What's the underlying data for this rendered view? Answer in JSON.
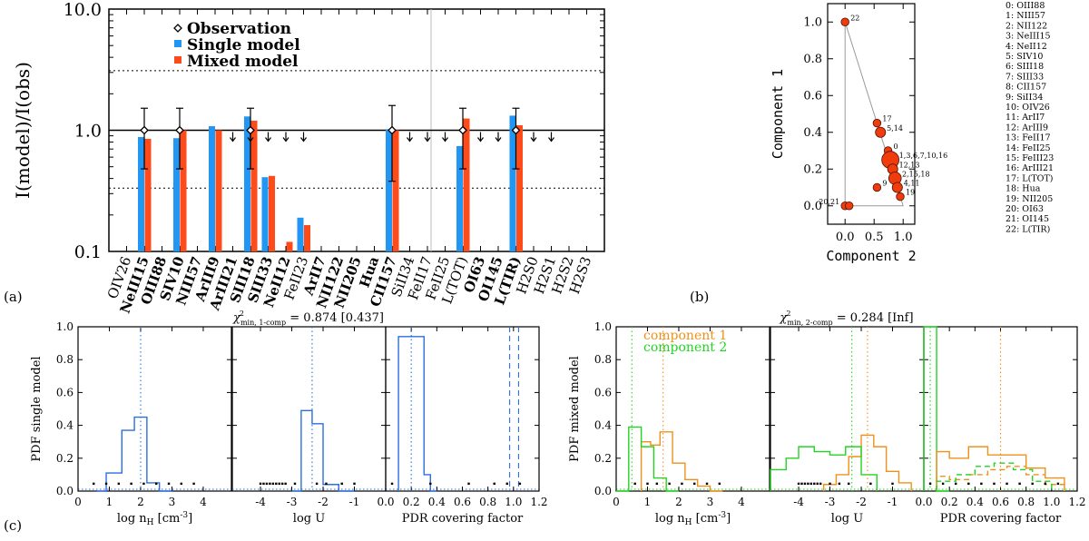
{
  "panel_labels": {
    "a": "(a)",
    "b": "(b)",
    "c": "(c)"
  },
  "chart_data": [
    {
      "id": "a",
      "type": "bar",
      "yscale": "log",
      "ylim": [
        0.1,
        10
      ],
      "ylabel": "I(model)/I(obs)",
      "yticks": [
        {
          "v": 0.1,
          "label": "0.1"
        },
        {
          "v": 1,
          "label": "1.0"
        },
        {
          "v": 10,
          "label": "10.0"
        }
      ],
      "ref_lines": {
        "solid": 1.0,
        "dotted": [
          0.333,
          3.1
        ]
      },
      "legend": [
        "Observation",
        "Single model",
        "Mixed model"
      ],
      "colors": {
        "single": "#2196f3",
        "mixed": "#ff4a1a"
      },
      "categories": [
        {
          "label": "OIV26",
          "bold": false,
          "single": null,
          "mixed": null,
          "obs": false,
          "limit": false
        },
        {
          "label": "NeIII15",
          "bold": true,
          "single": 0.88,
          "mixed": 0.85,
          "obs": true,
          "err": [
            0.48,
            1.52
          ],
          "limit": false
        },
        {
          "label": "OIII88",
          "bold": true,
          "single": null,
          "mixed": null,
          "obs": false,
          "limit": false
        },
        {
          "label": "SIV10",
          "bold": true,
          "single": 0.86,
          "mixed": 1.0,
          "obs": true,
          "err": [
            0.48,
            1.52
          ],
          "limit": false
        },
        {
          "label": "NIII57",
          "bold": true,
          "single": null,
          "mixed": null,
          "obs": false,
          "limit": false
        },
        {
          "label": "ArIII9",
          "bold": true,
          "single": 1.08,
          "mixed": 1.0,
          "obs": false,
          "limit": false
        },
        {
          "label": "ArIII21",
          "bold": true,
          "single": null,
          "mixed": null,
          "obs": false,
          "limit": true
        },
        {
          "label": "SIII18",
          "bold": true,
          "single": 1.3,
          "mixed": 1.2,
          "obs": true,
          "err": [
            0.48,
            1.52
          ],
          "limit": true
        },
        {
          "label": "SIII33",
          "bold": true,
          "single": 0.41,
          "mixed": 0.42,
          "obs": false,
          "limit": true
        },
        {
          "label": "NeII12",
          "bold": true,
          "single": null,
          "mixed": 0.12,
          "obs": false,
          "limit": true
        },
        {
          "label": "FeII23",
          "bold": false,
          "single": 0.19,
          "mixed": 0.165,
          "obs": false,
          "limit": true
        },
        {
          "label": "ArII7",
          "bold": true,
          "single": null,
          "mixed": null,
          "obs": false,
          "limit": false
        },
        {
          "label": "NII122",
          "bold": true,
          "single": null,
          "mixed": null,
          "obs": false,
          "limit": false
        },
        {
          "label": "NII205",
          "bold": true,
          "single": null,
          "mixed": null,
          "obs": false,
          "limit": false
        },
        {
          "label": "Hua",
          "bold": true,
          "single": null,
          "mixed": null,
          "obs": false,
          "limit": false
        },
        {
          "label": "CII157",
          "bold": true,
          "single": 1.02,
          "mixed": 1.0,
          "obs": true,
          "err": [
            0.38,
            1.6
          ],
          "limit": false
        },
        {
          "label": "SiII34",
          "bold": false,
          "single": null,
          "mixed": null,
          "obs": false,
          "limit": true
        },
        {
          "label": "FeII17",
          "bold": false,
          "single": null,
          "mixed": null,
          "obs": false,
          "limit": true
        },
        {
          "label": "FeII25",
          "bold": false,
          "single": null,
          "mixed": null,
          "obs": false,
          "limit": true
        },
        {
          "label": "L(TOT)",
          "bold": false,
          "single": 0.74,
          "mixed": 1.25,
          "obs": true,
          "err": [
            0.48,
            1.52
          ],
          "limit": false
        },
        {
          "label": "OI63",
          "bold": true,
          "single": null,
          "mixed": null,
          "obs": false,
          "limit": true
        },
        {
          "label": "OI145",
          "bold": true,
          "single": null,
          "mixed": null,
          "obs": false,
          "limit": true
        },
        {
          "label": "L(TIR)",
          "bold": true,
          "single": 1.32,
          "mixed": 1.1,
          "obs": true,
          "err": [
            0.48,
            1.52
          ],
          "limit": false
        },
        {
          "label": "H2S0",
          "bold": false,
          "single": null,
          "mixed": null,
          "obs": false,
          "limit": true
        },
        {
          "label": "H2S1",
          "bold": false,
          "single": null,
          "mixed": null,
          "obs": false,
          "limit": true
        },
        {
          "label": "H2S2",
          "bold": false,
          "single": null,
          "mixed": null,
          "obs": false,
          "limit": false
        },
        {
          "label": "H2S3",
          "bold": false,
          "single": null,
          "mixed": null,
          "obs": false,
          "limit": false
        }
      ]
    },
    {
      "id": "b",
      "type": "scatter",
      "xlabel": "Component 2",
      "ylabel": "Component 1",
      "xlim": [
        -0.3,
        1.2
      ],
      "ylim": [
        -0.1,
        1.1
      ],
      "xticks": [
        0.0,
        0.5,
        1.0
      ],
      "xtick_labels": [
        "0.0",
        "0.5",
        "1.0"
      ],
      "yticks": [
        0.0,
        0.2,
        0.4,
        0.6,
        0.8,
        1.0
      ],
      "ytick_labels": [
        "0.0",
        "0.2",
        "0.4",
        "0.6",
        "0.8",
        "1.0"
      ],
      "triangle": [
        [
          0,
          1
        ],
        [
          0,
          0
        ],
        [
          1,
          0
        ]
      ],
      "points": [
        {
          "x": 0.0,
          "y": 1.0,
          "r": 1,
          "label": "22"
        },
        {
          "x": 0.55,
          "y": 0.45,
          "r": 1,
          "label": "17"
        },
        {
          "x": 0.61,
          "y": 0.4,
          "r": 1.3,
          "label": "5,14"
        },
        {
          "x": 0.74,
          "y": 0.3,
          "r": 1,
          "label": "0"
        },
        {
          "x": 0.78,
          "y": 0.25,
          "r": 2.2,
          "label": "1,3,6,7,10,16"
        },
        {
          "x": 0.82,
          "y": 0.2,
          "r": 1.3,
          "label": "12,13"
        },
        {
          "x": 0.86,
          "y": 0.15,
          "r": 1.6,
          "label": "2,15,18"
        },
        {
          "x": 0.9,
          "y": 0.1,
          "r": 1.3,
          "label": "4,11"
        },
        {
          "x": 0.95,
          "y": 0.05,
          "r": 1,
          "label": "19"
        },
        {
          "x": 0.55,
          "y": 0.1,
          "r": 1,
          "label": "9"
        },
        {
          "x": 0.0,
          "y": 0.0,
          "r": 1,
          "label": "20,21"
        },
        {
          "x": 0.07,
          "y": 0.0,
          "r": 1,
          "label": ""
        }
      ],
      "legend": [
        "0: OIII88",
        "1: NIII57",
        "2: NII122",
        "3: NeIII15",
        "4: NeII12",
        "5: SIV10",
        "6: SIII18",
        "7: SIII33",
        "8: CII157",
        "9: SiII34",
        "10: OIV26",
        "11:   ArII7",
        "12: ArIII9",
        "13: FeII17",
        "14: FeII25",
        "15: FeIII23",
        "16: ArIII21",
        "17: L(TOT)",
        "18:   Hua",
        "19: NII205",
        "20: OI63",
        "21: OI145",
        "22: L(TIR)"
      ]
    },
    {
      "id": "c-left",
      "type": "histogram",
      "title_prefix": "χ",
      "title_sup": "2",
      "title_sub": "min, 1-comp",
      "title_value": " = 0.874 [0.437]",
      "ylabel": "PDF single model",
      "ylim": [
        0,
        1.0
      ],
      "yticks": [
        0.0,
        0.2,
        0.4,
        0.6,
        0.8,
        1.0
      ],
      "ytick_labels": [
        "0.0",
        "0.2",
        "0.4",
        "0.6",
        "0.8",
        "1.0"
      ],
      "color": "#2a6fdc",
      "subplots": [
        {
          "xlabel": "log n",
          "xlabel_sub": "H",
          "xlabel_suffix": " [cm",
          "xlabel_sup": "-3",
          "xlabel_end": "]",
          "xlim": [
            0,
            4.9
          ],
          "xticks": [
            0,
            1,
            2,
            3,
            4
          ],
          "xtick_labels": [
            "0",
            "1",
            "2",
            "3",
            "4"
          ],
          "edges": [
            0.6,
            0.9,
            1.4,
            1.8,
            2.2,
            2.6,
            3.0
          ],
          "values": [
            0.0,
            0.11,
            0.37,
            0.45,
            0.05,
            0.0
          ],
          "vlines": [
            {
              "x": 2.0,
              "style": "dotted"
            }
          ],
          "dots": [
            0.5,
            0.9,
            1.3,
            1.7,
            2.1,
            2.5,
            2.9,
            3.3,
            3.7
          ]
        },
        {
          "xlabel": "log U",
          "xlim": [
            -4.9,
            0
          ],
          "xticks": [
            -4,
            -3,
            -2,
            -1
          ],
          "xtick_labels": [
            "-4",
            "-3",
            "-2",
            "-1"
          ],
          "edges": [
            -3.0,
            -2.7,
            -2.35,
            -2.0,
            -1.5,
            -1.0
          ],
          "values": [
            0.0,
            0.49,
            0.41,
            0.04,
            0.0
          ],
          "vlines": [
            {
              "x": -2.35,
              "style": "dotted"
            }
          ],
          "dots": [
            -4.0,
            -3.9,
            -3.8,
            -3.7,
            -3.6,
            -3.5,
            -3.4,
            -3.3,
            -3.2,
            -2.9,
            -2.2,
            -1.9,
            -1.4,
            -1.0
          ]
        },
        {
          "xlabel": "PDR covering factor",
          "xlim": [
            0,
            1.2
          ],
          "xticks": [
            0,
            0.2,
            0.4,
            0.6,
            0.8,
            1.0,
            1.2
          ],
          "xtick_labels": [
            "0.0",
            "0.2",
            "0.4",
            "0.6",
            "0.8",
            "1.0",
            "1.2"
          ],
          "edges": [
            0.1,
            0.3,
            0.35,
            0.4
          ],
          "values": [
            0.94,
            0.1,
            0.0
          ],
          "vlines": [
            {
              "x": 0.2,
              "style": "dotted"
            },
            {
              "x": 0.97,
              "style": "dashed"
            },
            {
              "x": 1.04,
              "style": "dashed"
            }
          ],
          "dots": [
            0.05,
            0.35,
            0.65,
            0.85,
            0.95,
            1.05
          ]
        }
      ]
    },
    {
      "id": "c-right",
      "type": "histogram",
      "title_prefix": "χ",
      "title_sup": "2",
      "title_sub": "min, 2-comp",
      "title_value": " = 0.284 [Inf]",
      "ylabel": "PDF mixed model",
      "ylim": [
        0,
        1.0
      ],
      "yticks": [
        0.0,
        0.2,
        0.4,
        0.6,
        0.8,
        1.0
      ],
      "ytick_labels": [
        "0.0",
        "0.2",
        "0.4",
        "0.6",
        "0.8",
        "1.0"
      ],
      "legend": [
        {
          "label": "component 1",
          "color": "#f0901a"
        },
        {
          "label": "component 2",
          "color": "#22d422"
        }
      ],
      "subplots": [
        {
          "xlabel": "log n",
          "xlabel_sub": "H",
          "xlabel_suffix": " [cm",
          "xlabel_sup": "-3",
          "xlabel_end": "]",
          "xlim": [
            0,
            4.9
          ],
          "xticks": [
            0,
            1,
            2,
            3,
            4
          ],
          "xtick_labels": [
            "0",
            "1",
            "2",
            "3",
            "4"
          ],
          "series": [
            {
              "color": "#f0901a",
              "style": "solid",
              "edges": [
                0.8,
                1.1,
                1.4,
                1.8,
                2.2,
                2.6,
                3.0,
                3.4
              ],
              "values": [
                0.3,
                0.28,
                0.36,
                0.17,
                0.07,
                0.03,
                0.0
              ]
            },
            {
              "color": "#22d422",
              "style": "solid",
              "edges": [
                0.0,
                0.4,
                0.8,
                1.2,
                1.6,
                2.0
              ],
              "values": [
                0.0,
                0.39,
                0.27,
                0.08,
                0.0
              ]
            }
          ],
          "vlines": [
            {
              "x": 1.5,
              "style": "dotted",
              "color": "#f0901a"
            },
            {
              "x": 0.5,
              "style": "dotted",
              "color": "#22d422"
            }
          ],
          "dots": [
            0.6,
            1.0,
            1.3,
            1.7,
            2.1,
            2.5,
            2.9,
            3.3
          ]
        },
        {
          "xlabel": "log U",
          "xlim": [
            -4.9,
            0
          ],
          "xticks": [
            -4,
            -3,
            -2,
            -1
          ],
          "xtick_labels": [
            "-4",
            "-3",
            "-2",
            "-1"
          ],
          "series": [
            {
              "color": "#f0901a",
              "style": "solid",
              "edges": [
                -3.2,
                -2.8,
                -2.4,
                -2.0,
                -1.6,
                -1.2,
                -0.8,
                -0.4
              ],
              "values": [
                0.04,
                0.1,
                0.21,
                0.34,
                0.27,
                0.12,
                0.05
              ]
            },
            {
              "color": "#22d422",
              "style": "solid",
              "edges": [
                -4.9,
                -4.4,
                -4.0,
                -3.5,
                -3.0,
                -2.5,
                -2.0,
                -1.5
              ],
              "values": [
                0.13,
                0.2,
                0.27,
                0.24,
                0.22,
                0.27,
                0.1
              ]
            }
          ],
          "vlines": [
            {
              "x": -1.8,
              "style": "dotted",
              "color": "#f0901a"
            },
            {
              "x": -2.3,
              "style": "dotted",
              "color": "#22d422"
            }
          ],
          "dots": [
            -4.0,
            -3.9,
            -3.8,
            -3.7,
            -3.6,
            -3.5,
            -3.4,
            -3.3,
            -3.0,
            -2.7,
            -2.4,
            -1.7,
            -1.0
          ]
        },
        {
          "xlabel": "PDR covering factor",
          "xlim": [
            0,
            1.2
          ],
          "xticks": [
            0,
            0.2,
            0.4,
            0.6,
            0.8,
            1.0,
            1.2
          ],
          "xtick_labels": [
            "0.0",
            "0.2",
            "0.4",
            "0.6",
            "0.8",
            "1.0",
            "1.2"
          ],
          "series": [
            {
              "color": "#22d422",
              "style": "solid",
              "edges": [
                0.0,
                0.1,
                0.2
              ],
              "values": [
                1.0,
                0.0
              ]
            },
            {
              "color": "#f0901a",
              "style": "solid",
              "edges": [
                0.1,
                0.2,
                0.35,
                0.5,
                0.65,
                0.8,
                0.95,
                1.1
              ],
              "values": [
                0.24,
                0.2,
                0.27,
                0.22,
                0.22,
                0.14,
                0.08
              ]
            },
            {
              "color": "#f0901a",
              "style": "dashed",
              "edges": [
                0.1,
                0.2,
                0.35,
                0.5,
                0.65,
                0.8,
                0.95,
                1.1
              ],
              "values": [
                0.09,
                0.07,
                0.1,
                0.13,
                0.15,
                0.1,
                0.04
              ]
            },
            {
              "color": "#22d422",
              "style": "dashed",
              "edges": [
                0.1,
                0.25,
                0.4,
                0.55,
                0.7,
                0.85,
                1.0
              ],
              "values": [
                0.06,
                0.1,
                0.15,
                0.17,
                0.13,
                0.06
              ]
            }
          ],
          "vlines": [
            {
              "x": 0.6,
              "style": "dotted",
              "color": "#f0901a"
            },
            {
              "x": 0.05,
              "style": "dotted",
              "color": "#22d422"
            }
          ],
          "dots": [
            0.05,
            0.15,
            0.25,
            0.35,
            0.45,
            0.55,
            0.65,
            0.75,
            0.85,
            0.95,
            1.05
          ]
        }
      ]
    }
  ]
}
